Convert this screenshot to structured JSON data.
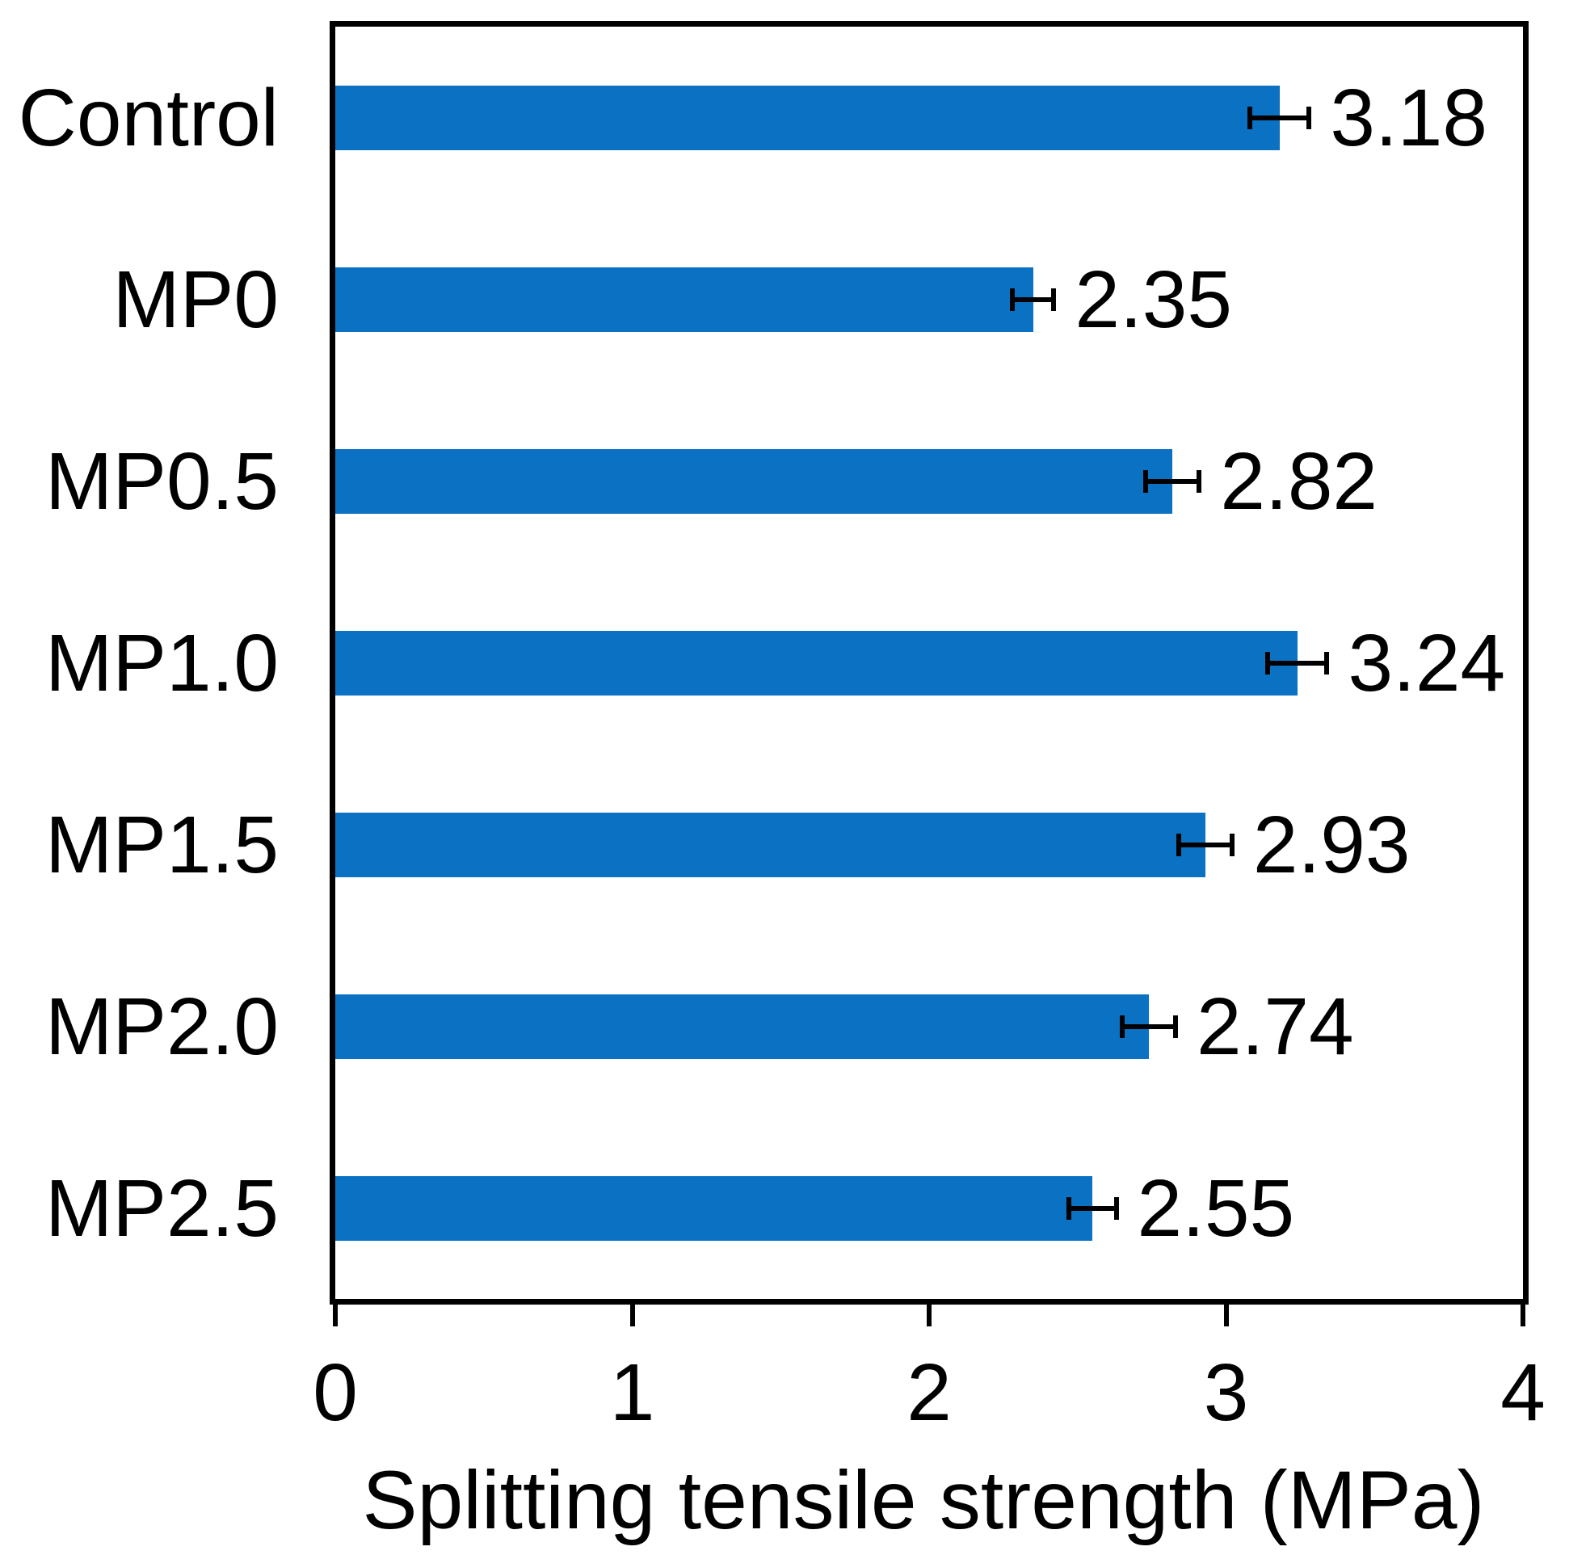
{
  "chart_data": {
    "type": "bar",
    "orientation": "horizontal",
    "title": "",
    "xlabel": "Splitting tensile strength (MPa)",
    "ylabel": "",
    "categories": [
      "Control",
      "MP0",
      "MP0.5",
      "MP1.0",
      "MP1.5",
      "MP2.0",
      "MP2.5"
    ],
    "values": [
      3.18,
      2.35,
      2.82,
      3.24,
      2.93,
      2.74,
      2.55
    ],
    "errors": [
      0.1,
      0.07,
      0.09,
      0.1,
      0.09,
      0.09,
      0.08
    ],
    "value_labels": [
      "3.18",
      "2.35",
      "2.82",
      "3.24",
      "2.93",
      "2.74",
      "2.55"
    ],
    "xlim": [
      0,
      4
    ],
    "xticks": [
      0,
      1,
      2,
      3,
      4
    ],
    "xtick_labels": [
      "0",
      "1",
      "2",
      "3",
      "4"
    ],
    "bar_color": "#0a71c3",
    "axis_color": "#000000",
    "grid": false,
    "legend": false
  }
}
